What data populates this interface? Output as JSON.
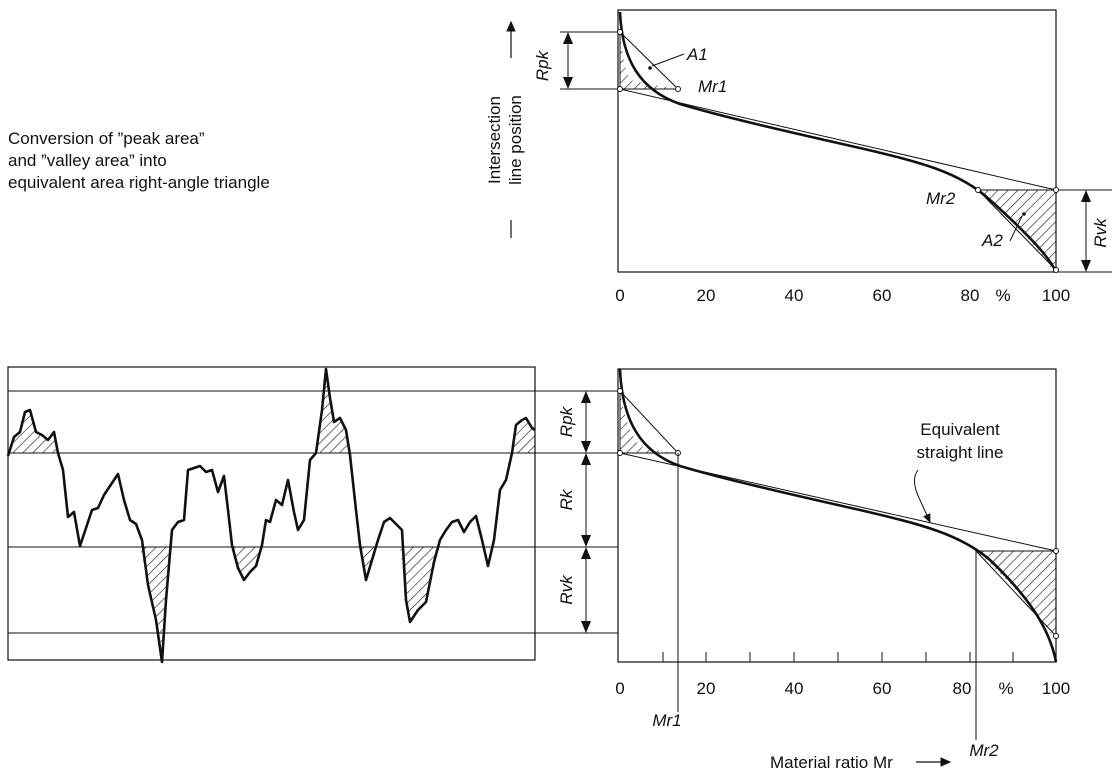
{
  "intro": {
    "line1": "Conversion of ”peak area”",
    "line2": "and ”valley area” into",
    "line3": "equivalent area right-angle triangle"
  },
  "top_chart": {
    "y_axis_label_line1": "Intersection",
    "y_axis_label_line2": "line position",
    "x_ticks": [
      "0",
      "20",
      "40",
      "60",
      "80",
      "%",
      "100"
    ],
    "labels": {
      "rpk": "Rpk",
      "rvk": "Rvk",
      "a1": "A1",
      "a2": "A2",
      "mr1": "Mr1",
      "mr2": "Mr2"
    }
  },
  "bottom_chart": {
    "x_ticks": [
      "0",
      "20",
      "40",
      "60",
      "80",
      "%",
      "100"
    ],
    "labels": {
      "rpk": "Rpk",
      "rk": "Rk",
      "rvk": "Rvk",
      "mr1": "Mr1",
      "mr2": "Mr2",
      "equiv_line1": "Equivalent",
      "equiv_line2": "straight line"
    },
    "x_axis_title": "Material ratio Mr"
  },
  "colors": {
    "ink": "#111111",
    "paper": "#ffffff"
  }
}
